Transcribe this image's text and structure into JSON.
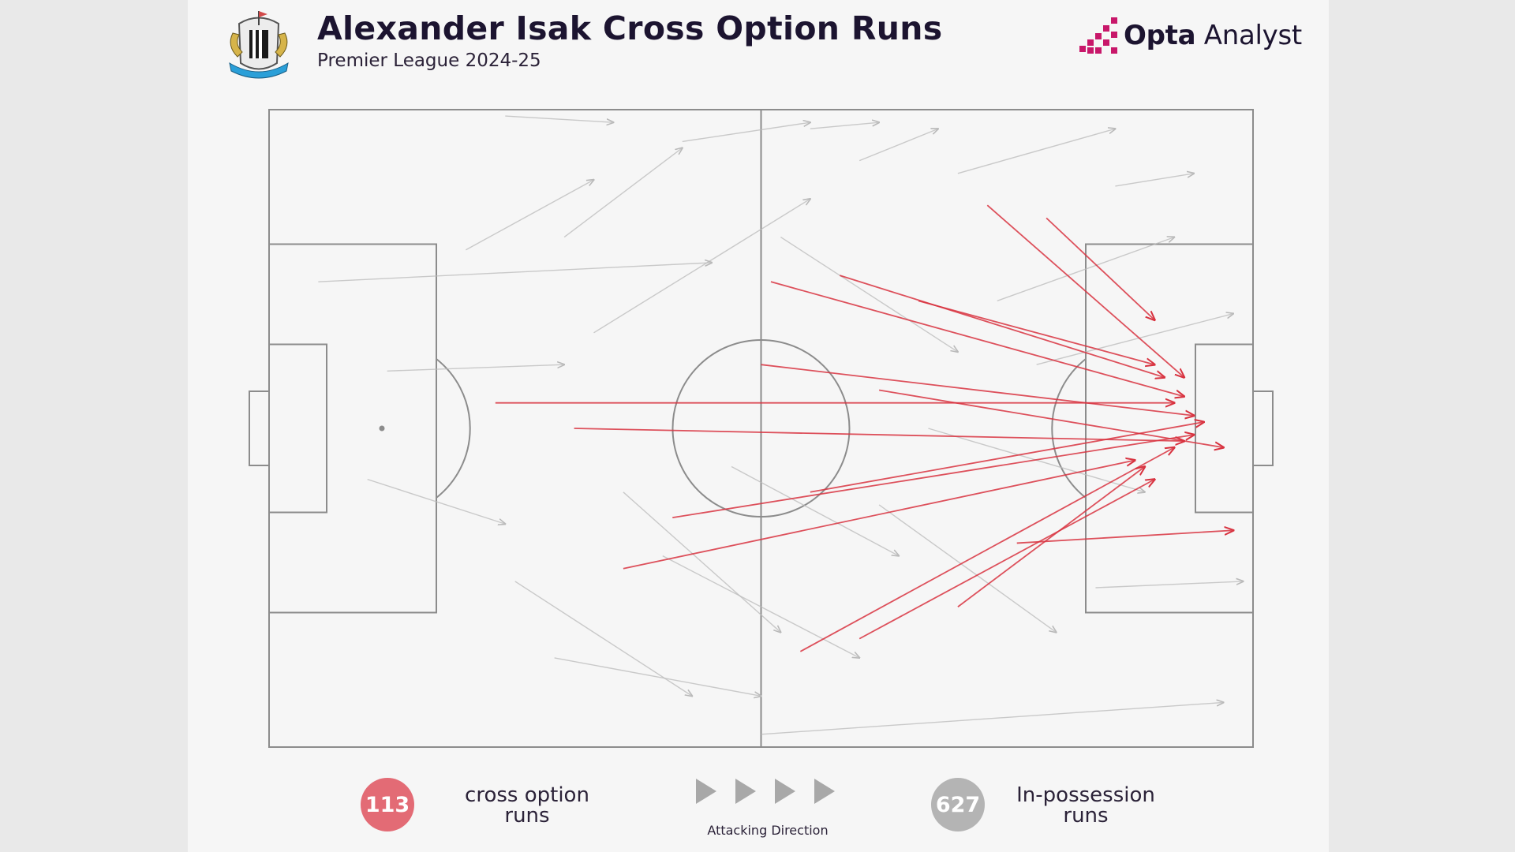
{
  "header": {
    "title": "Alexander Isak Cross Option Runs",
    "subtitle": "Premier League 2024-25",
    "brand_bold": "Opta",
    "brand_light": "Analyst",
    "crest_icon": "newcastle-united-crest-icon"
  },
  "colors": {
    "cross_option": "#d8323f",
    "in_possession": "#b9b9b9",
    "pitch_lines": "#8c8c8c",
    "background": "#f6f6f6",
    "title": "#1c1430",
    "brand_accent": "#c8176a"
  },
  "legend": {
    "cross_count": "113",
    "cross_label_1": "cross option",
    "cross_label_2": "runs",
    "possession_count": "627",
    "possession_label_1": "In-possession",
    "possession_label_2": "runs",
    "direction_label": "Attacking Direction",
    "direction_icon": "play-arrow-icon"
  },
  "chart_data": {
    "type": "scatter",
    "title": "Alexander Isak Cross Option Runs",
    "subtitle": "Premier League 2024-25",
    "x_range": [
      0,
      100
    ],
    "y_range": [
      0,
      100
    ],
    "attacking_direction": "left-to-right",
    "series": [
      {
        "name": "cross option runs",
        "count": 113,
        "color": "#d8323f",
        "sample_runs": [
          {
            "x1": 23,
            "y1": 46,
            "x2": 92,
            "y2": 46
          },
          {
            "x1": 31,
            "y1": 50,
            "x2": 93,
            "y2": 52
          },
          {
            "x1": 51,
            "y1": 27,
            "x2": 93,
            "y2": 45
          },
          {
            "x1": 58,
            "y1": 26,
            "x2": 91,
            "y2": 42
          },
          {
            "x1": 73,
            "y1": 15,
            "x2": 93,
            "y2": 42
          },
          {
            "x1": 79,
            "y1": 17,
            "x2": 90,
            "y2": 33
          },
          {
            "x1": 36,
            "y1": 72,
            "x2": 88,
            "y2": 55
          },
          {
            "x1": 54,
            "y1": 85,
            "x2": 92,
            "y2": 53
          },
          {
            "x1": 60,
            "y1": 83,
            "x2": 90,
            "y2": 58
          },
          {
            "x1": 41,
            "y1": 64,
            "x2": 94,
            "y2": 51
          },
          {
            "x1": 50,
            "y1": 40,
            "x2": 94,
            "y2": 48
          },
          {
            "x1": 76,
            "y1": 68,
            "x2": 98,
            "y2": 66
          },
          {
            "x1": 66,
            "y1": 30,
            "x2": 90,
            "y2": 40
          },
          {
            "x1": 70,
            "y1": 78,
            "x2": 89,
            "y2": 56
          },
          {
            "x1": 55,
            "y1": 60,
            "x2": 95,
            "y2": 49
          },
          {
            "x1": 62,
            "y1": 44,
            "x2": 97,
            "y2": 53
          }
        ]
      },
      {
        "name": "In-possession runs",
        "count": 627,
        "color": "#b9b9b9",
        "sample_runs": [
          {
            "x1": 24,
            "y1": 1,
            "x2": 35,
            "y2": 2
          },
          {
            "x1": 42,
            "y1": 5,
            "x2": 55,
            "y2": 2
          },
          {
            "x1": 55,
            "y1": 3,
            "x2": 62,
            "y2": 2
          },
          {
            "x1": 60,
            "y1": 8,
            "x2": 68,
            "y2": 3
          },
          {
            "x1": 70,
            "y1": 10,
            "x2": 86,
            "y2": 3
          },
          {
            "x1": 86,
            "y1": 12,
            "x2": 94,
            "y2": 10
          },
          {
            "x1": 5,
            "y1": 27,
            "x2": 45,
            "y2": 24
          },
          {
            "x1": 12,
            "y1": 41,
            "x2": 30,
            "y2": 40
          },
          {
            "x1": 10,
            "y1": 58,
            "x2": 24,
            "y2": 65
          },
          {
            "x1": 29,
            "y1": 86,
            "x2": 50,
            "y2": 92
          },
          {
            "x1": 50,
            "y1": 98,
            "x2": 97,
            "y2": 93
          },
          {
            "x1": 25,
            "y1": 74,
            "x2": 43,
            "y2": 92
          },
          {
            "x1": 30,
            "y1": 20,
            "x2": 42,
            "y2": 6
          },
          {
            "x1": 33,
            "y1": 35,
            "x2": 55,
            "y2": 14
          },
          {
            "x1": 40,
            "y1": 70,
            "x2": 60,
            "y2": 86
          },
          {
            "x1": 62,
            "y1": 62,
            "x2": 80,
            "y2": 82
          },
          {
            "x1": 74,
            "y1": 30,
            "x2": 92,
            "y2": 20
          },
          {
            "x1": 84,
            "y1": 75,
            "x2": 99,
            "y2": 74
          },
          {
            "x1": 67,
            "y1": 50,
            "x2": 89,
            "y2": 60
          },
          {
            "x1": 47,
            "y1": 56,
            "x2": 64,
            "y2": 70
          },
          {
            "x1": 52,
            "y1": 20,
            "x2": 70,
            "y2": 38
          },
          {
            "x1": 78,
            "y1": 40,
            "x2": 98,
            "y2": 32
          },
          {
            "x1": 20,
            "y1": 22,
            "x2": 33,
            "y2": 11
          },
          {
            "x1": 36,
            "y1": 60,
            "x2": 52,
            "y2": 82
          }
        ]
      }
    ]
  }
}
